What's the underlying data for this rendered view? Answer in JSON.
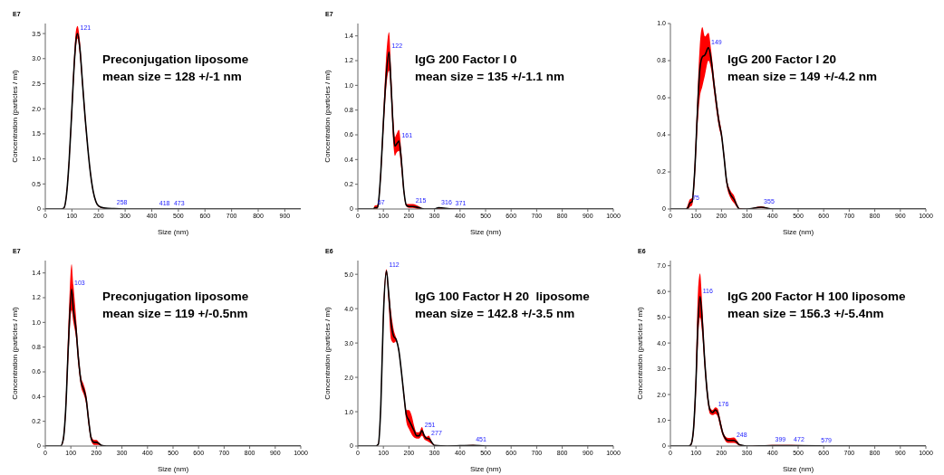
{
  "chart_data": [
    {
      "type": "line",
      "title": "Preconjugation liposome",
      "subtitle": "mean size = 128 +/-1 nm",
      "xlabel": "Size (nm)",
      "ylabel": "Concentration (particles / ml)",
      "annotations": [
        "E7",
        {
          "text": "121",
          "x": 121,
          "y": 3.5
        },
        {
          "text": "258",
          "x": 258,
          "y": 0.01
        },
        {
          "text": "418",
          "x": 418,
          "y": 0
        },
        {
          "text": "473",
          "x": 473,
          "y": 0
        }
      ],
      "x": [
        0,
        60,
        70,
        80,
        90,
        100,
        110,
        115,
        121,
        130,
        140,
        150,
        160,
        170,
        180,
        190,
        200,
        220,
        250,
        258,
        300,
        418,
        473,
        600,
        800,
        960
      ],
      "series": [
        {
          "color": "#000000",
          "values": [
            0,
            0,
            0.02,
            0.3,
            1.0,
            2.0,
            3.0,
            3.35,
            3.5,
            3.2,
            2.5,
            1.8,
            1.2,
            0.7,
            0.35,
            0.15,
            0.06,
            0.02,
            0.01,
            0.01,
            0,
            0,
            0,
            0,
            0,
            0
          ],
          "upper": [
            0,
            0,
            0.03,
            0.35,
            1.1,
            2.15,
            3.2,
            3.55,
            3.65,
            3.35,
            2.6,
            1.9,
            1.25,
            0.75,
            0.38,
            0.17,
            0.07,
            0.02,
            0.01,
            0.01,
            0,
            0,
            0,
            0,
            0,
            0
          ],
          "lower": [
            0,
            0,
            0.01,
            0.25,
            0.9,
            1.85,
            2.85,
            3.2,
            3.4,
            3.05,
            2.4,
            1.7,
            1.15,
            0.65,
            0.32,
            0.13,
            0.05,
            0.01,
            0,
            0,
            0,
            0,
            0,
            0,
            0,
            0
          ]
        }
      ],
      "xlim": [
        0,
        960
      ],
      "xticks": [
        0,
        100,
        200,
        300,
        400,
        500,
        600,
        700,
        800,
        900
      ],
      "ylim": [
        0,
        3.7
      ],
      "yticks": [
        0,
        0.5,
        {
          "value": 1,
          "label": "1.0"
        },
        1.5,
        {
          "value": 2,
          "label": "2.0"
        },
        2.5,
        {
          "value": 3,
          "label": "3.0"
        },
        3.5
      ]
    },
    {
      "type": "line",
      "title": "IgG 200 Factor I 0",
      "subtitle": "mean size = 135 +/-1.1 nm",
      "xlabel": "Size (nm)",
      "ylabel": "Concentration (particles / ml)",
      "annotations": [
        "E7",
        {
          "text": "67",
          "x": 67,
          "y": 0.01
        },
        {
          "text": "122",
          "x": 122,
          "y": 1.27
        },
        {
          "text": "161",
          "x": 161,
          "y": 0.55
        },
        {
          "text": "215",
          "x": 215,
          "y": 0.02
        },
        {
          "text": "316",
          "x": 316,
          "y": 0.01
        },
        {
          "text": "371",
          "x": 371,
          "y": 0
        }
      ],
      "x": [
        0,
        60,
        67,
        75,
        80,
        90,
        100,
        110,
        122,
        130,
        140,
        145,
        150,
        161,
        170,
        180,
        190,
        200,
        215,
        240,
        260,
        300,
        316,
        371,
        400,
        600,
        1000
      ],
      "series": [
        {
          "color": "#000000",
          "values": [
            0,
            0,
            0.01,
            0.01,
            0.04,
            0.3,
            0.7,
            1.05,
            1.27,
            1.0,
            0.6,
            0.51,
            0.52,
            0.55,
            0.4,
            0.15,
            0.03,
            0.02,
            0.02,
            0.01,
            0,
            0,
            0.01,
            0,
            0,
            0,
            0
          ],
          "upper": [
            0,
            0,
            0.03,
            0.03,
            0.06,
            0.35,
            0.78,
            1.2,
            1.43,
            1.12,
            0.7,
            0.58,
            0.6,
            0.64,
            0.47,
            0.18,
            0.04,
            0.04,
            0.04,
            0.02,
            0,
            0,
            0.01,
            0.005,
            0,
            0,
            0
          ],
          "lower": [
            0,
            0,
            0,
            0,
            0.02,
            0.25,
            0.62,
            0.95,
            1.12,
            0.9,
            0.5,
            0.43,
            0.45,
            0.47,
            0.33,
            0.12,
            0.02,
            0.01,
            0.01,
            0,
            0,
            0,
            0,
            0,
            0,
            0,
            0
          ]
        }
      ],
      "xlim": [
        0,
        1000
      ],
      "xticks": [
        0,
        100,
        200,
        300,
        400,
        500,
        600,
        700,
        800,
        900,
        1000
      ],
      "ylim": [
        0,
        1.5
      ],
      "yticks": [
        0,
        0.2,
        0.4,
        0.6,
        0.8,
        {
          "value": 1,
          "label": "1.0"
        },
        1.2,
        1.4
      ]
    },
    {
      "type": "line",
      "title": "IgG 200 Factor I 20",
      "subtitle": "mean size = 149 +/-4.2 nm",
      "xlabel": "Size (nm)",
      "annotations": [
        {
          "text": "75",
          "x": 75,
          "y": 0.03
        },
        {
          "text": "149",
          "x": 149,
          "y": 0.87
        },
        {
          "text": "355",
          "x": 355,
          "y": 0.01
        }
      ],
      "x": [
        0,
        60,
        70,
        75,
        85,
        95,
        105,
        115,
        125,
        135,
        149,
        160,
        170,
        180,
        190,
        200,
        210,
        220,
        235,
        250,
        260,
        270,
        300,
        355,
        400,
        1000
      ],
      "series": [
        {
          "color": "#000000",
          "values": [
            0,
            0,
            0.01,
            0.03,
            0.04,
            0.2,
            0.5,
            0.75,
            0.82,
            0.83,
            0.87,
            0.8,
            0.68,
            0.57,
            0.47,
            0.4,
            0.28,
            0.15,
            0.08,
            0.05,
            0.02,
            0,
            0,
            0.01,
            0,
            0
          ],
          "upper": [
            0,
            0,
            0.03,
            0.05,
            0.06,
            0.25,
            0.58,
            0.88,
            0.98,
            0.93,
            0.95,
            0.85,
            0.72,
            0.6,
            0.5,
            0.42,
            0.3,
            0.17,
            0.1,
            0.07,
            0.03,
            0.005,
            0,
            0.015,
            0,
            0
          ],
          "lower": [
            0,
            0,
            0,
            0.01,
            0.02,
            0.15,
            0.42,
            0.6,
            0.66,
            0.72,
            0.8,
            0.75,
            0.64,
            0.53,
            0.44,
            0.38,
            0.26,
            0.13,
            0.06,
            0.03,
            0.01,
            0,
            0,
            0.005,
            0,
            0
          ]
        }
      ],
      "xlim": [
        0,
        1000
      ],
      "xticks": [
        0,
        100,
        200,
        300,
        400,
        500,
        600,
        700,
        800,
        900,
        1000
      ],
      "ylim": [
        0,
        1.0
      ],
      "yticks": [
        0,
        0.2,
        0.4,
        0.6,
        0.8,
        {
          "value": 1,
          "label": "1.0"
        }
      ]
    },
    {
      "type": "line",
      "title": "Preconjugation liposome",
      "subtitle": "mean size = 119 +/-0.5nm",
      "xlabel": "Size (nm)",
      "ylabel": "Concentration (particles / ml)",
      "annotations": [
        "E7",
        {
          "text": "103",
          "x": 103,
          "y": 1.27
        }
      ],
      "x": [
        0,
        60,
        70,
        80,
        90,
        103,
        110,
        120,
        130,
        140,
        150,
        160,
        170,
        180,
        190,
        200,
        210,
        220,
        240,
        1000
      ],
      "series": [
        {
          "color": "#000000",
          "values": [
            0,
            0,
            0.05,
            0.3,
            0.8,
            1.27,
            1.1,
            0.95,
            0.7,
            0.52,
            0.46,
            0.38,
            0.2,
            0.06,
            0.03,
            0.03,
            0.02,
            0.005,
            0,
            0
          ],
          "upper": [
            0,
            0,
            0.07,
            0.35,
            0.95,
            1.47,
            1.3,
            1.05,
            0.76,
            0.56,
            0.5,
            0.42,
            0.24,
            0.08,
            0.05,
            0.05,
            0.03,
            0.01,
            0,
            0
          ],
          "lower": [
            0,
            0,
            0.03,
            0.25,
            0.7,
            1.1,
            1.0,
            0.88,
            0.64,
            0.48,
            0.42,
            0.34,
            0.16,
            0.04,
            0.01,
            0.01,
            0.01,
            0,
            0,
            0
          ]
        }
      ],
      "xlim": [
        0,
        1000
      ],
      "xticks": [
        0,
        100,
        200,
        300,
        400,
        500,
        600,
        700,
        800,
        900,
        1000
      ],
      "ylim": [
        0,
        1.5
      ],
      "yticks": [
        0,
        0.2,
        0.4,
        0.6,
        0.8,
        {
          "value": 1,
          "label": "1.0"
        },
        1.2,
        1.4
      ]
    },
    {
      "type": "line",
      "title": "IgG 100 Factor H 20  liposome",
      "subtitle": "mean size = 142.8 +/-3.5 nm",
      "xlabel": "Size (nm)",
      "ylabel": "Concentration (particles / ml)",
      "annotations": [
        "E6",
        {
          "text": "112",
          "x": 112,
          "y": 5.1
        },
        {
          "text": "251",
          "x": 251,
          "y": 0.45
        },
        {
          "text": "277",
          "x": 277,
          "y": 0.22
        },
        {
          "text": "451",
          "x": 451,
          "y": 0.02
        }
      ],
      "x": [
        0,
        70,
        80,
        90,
        100,
        112,
        120,
        130,
        140,
        150,
        160,
        170,
        180,
        190,
        200,
        210,
        220,
        230,
        240,
        251,
        260,
        270,
        277,
        290,
        300,
        350,
        451,
        500,
        1000
      ],
      "series": [
        {
          "color": "#000000",
          "values": [
            0,
            0,
            0.05,
            1.2,
            3.8,
            5.1,
            4.5,
            3.6,
            3.2,
            3.1,
            2.8,
            2.2,
            1.5,
            0.9,
            0.75,
            0.6,
            0.45,
            0.3,
            0.3,
            0.45,
            0.3,
            0.22,
            0.22,
            0.1,
            0.02,
            0,
            0.02,
            0,
            0
          ],
          "upper": [
            0,
            0,
            0.08,
            1.3,
            4.0,
            5.15,
            4.6,
            3.9,
            3.4,
            3.15,
            2.85,
            2.25,
            1.6,
            1.05,
            1.05,
            0.9,
            0.6,
            0.4,
            0.4,
            0.55,
            0.35,
            0.27,
            0.3,
            0.12,
            0.03,
            0,
            0.03,
            0,
            0
          ],
          "lower": [
            0,
            0,
            0.02,
            1.1,
            3.6,
            5.0,
            4.2,
            3.1,
            3.0,
            3.05,
            2.75,
            2.15,
            1.4,
            0.7,
            0.5,
            0.35,
            0.25,
            0.22,
            0.22,
            0.3,
            0.2,
            0.15,
            0.12,
            0.06,
            0.01,
            0,
            0.01,
            0,
            0
          ]
        }
      ],
      "xlim": [
        0,
        1000
      ],
      "xticks": [
        0,
        100,
        200,
        300,
        400,
        500,
        600,
        700,
        800,
        900,
        1000
      ],
      "ylim": [
        0,
        5.4
      ],
      "yticks": [
        0,
        {
          "value": 1,
          "label": "1.0"
        },
        {
          "value": 2,
          "label": "2.0"
        },
        {
          "value": 3,
          "label": "3.0"
        },
        {
          "value": 4,
          "label": "4.0"
        },
        {
          "value": 5,
          "label": "5.0"
        }
      ]
    },
    {
      "type": "line",
      "title": "IgG 200 Factor H 100 liposome",
      "subtitle": "mean size = 156.3 +/-5.4nm",
      "xlabel": "Size (nm)",
      "ylabel": "Concentration (particles / ml)",
      "annotations": [
        "E6",
        {
          "text": "116",
          "x": 116,
          "y": 5.8
        },
        {
          "text": "176",
          "x": 176,
          "y": 1.4
        },
        {
          "text": "248",
          "x": 248,
          "y": 0.22
        },
        {
          "text": "399",
          "x": 399,
          "y": 0.02
        },
        {
          "text": "472",
          "x": 472,
          "y": 0.02
        },
        {
          "text": "579",
          "x": 579,
          "y": 0.01
        }
      ],
      "x": [
        0,
        70,
        80,
        90,
        100,
        108,
        116,
        125,
        135,
        145,
        155,
        165,
        176,
        185,
        195,
        205,
        215,
        225,
        235,
        248,
        260,
        270,
        290,
        300,
        399,
        472,
        579,
        600,
        1000
      ],
      "series": [
        {
          "color": "#000000",
          "values": [
            0,
            0,
            0.05,
            0.6,
            2.5,
            4.8,
            5.8,
            4.8,
            3.2,
            2.0,
            1.4,
            1.3,
            1.4,
            1.3,
            0.9,
            0.5,
            0.3,
            0.22,
            0.22,
            0.22,
            0.15,
            0.05,
            0.01,
            0,
            0.02,
            0.02,
            0.01,
            0,
            0
          ],
          "upper": [
            0,
            0,
            0.1,
            0.8,
            3.0,
            6.0,
            6.7,
            5.4,
            3.5,
            2.2,
            1.5,
            1.4,
            1.5,
            1.45,
            1.05,
            0.6,
            0.38,
            0.32,
            0.32,
            0.33,
            0.22,
            0.08,
            0.02,
            0,
            0.04,
            0.04,
            0.02,
            0,
            0
          ],
          "lower": [
            0,
            0,
            0.02,
            0.4,
            2.0,
            4.0,
            5.0,
            4.3,
            2.9,
            1.8,
            1.25,
            1.2,
            1.25,
            1.15,
            0.75,
            0.4,
            0.2,
            0.12,
            0.12,
            0.12,
            0.08,
            0.02,
            0,
            0,
            0,
            0,
            0,
            0,
            0
          ]
        }
      ],
      "xlim": [
        0,
        1000
      ],
      "xticks": [
        0,
        100,
        200,
        300,
        400,
        500,
        600,
        700,
        800,
        900,
        1000
      ],
      "ylim": [
        0,
        7.2
      ],
      "yticks": [
        0,
        {
          "value": 1,
          "label": "1.0"
        },
        {
          "value": 2,
          "label": "2.0"
        },
        {
          "value": 3,
          "label": "3.0"
        },
        {
          "value": 4,
          "label": "4.0"
        },
        {
          "value": 5,
          "label": "5.0"
        },
        {
          "value": 6,
          "label": "6.0"
        },
        {
          "value": 7,
          "label": "7.0"
        }
      ]
    }
  ]
}
